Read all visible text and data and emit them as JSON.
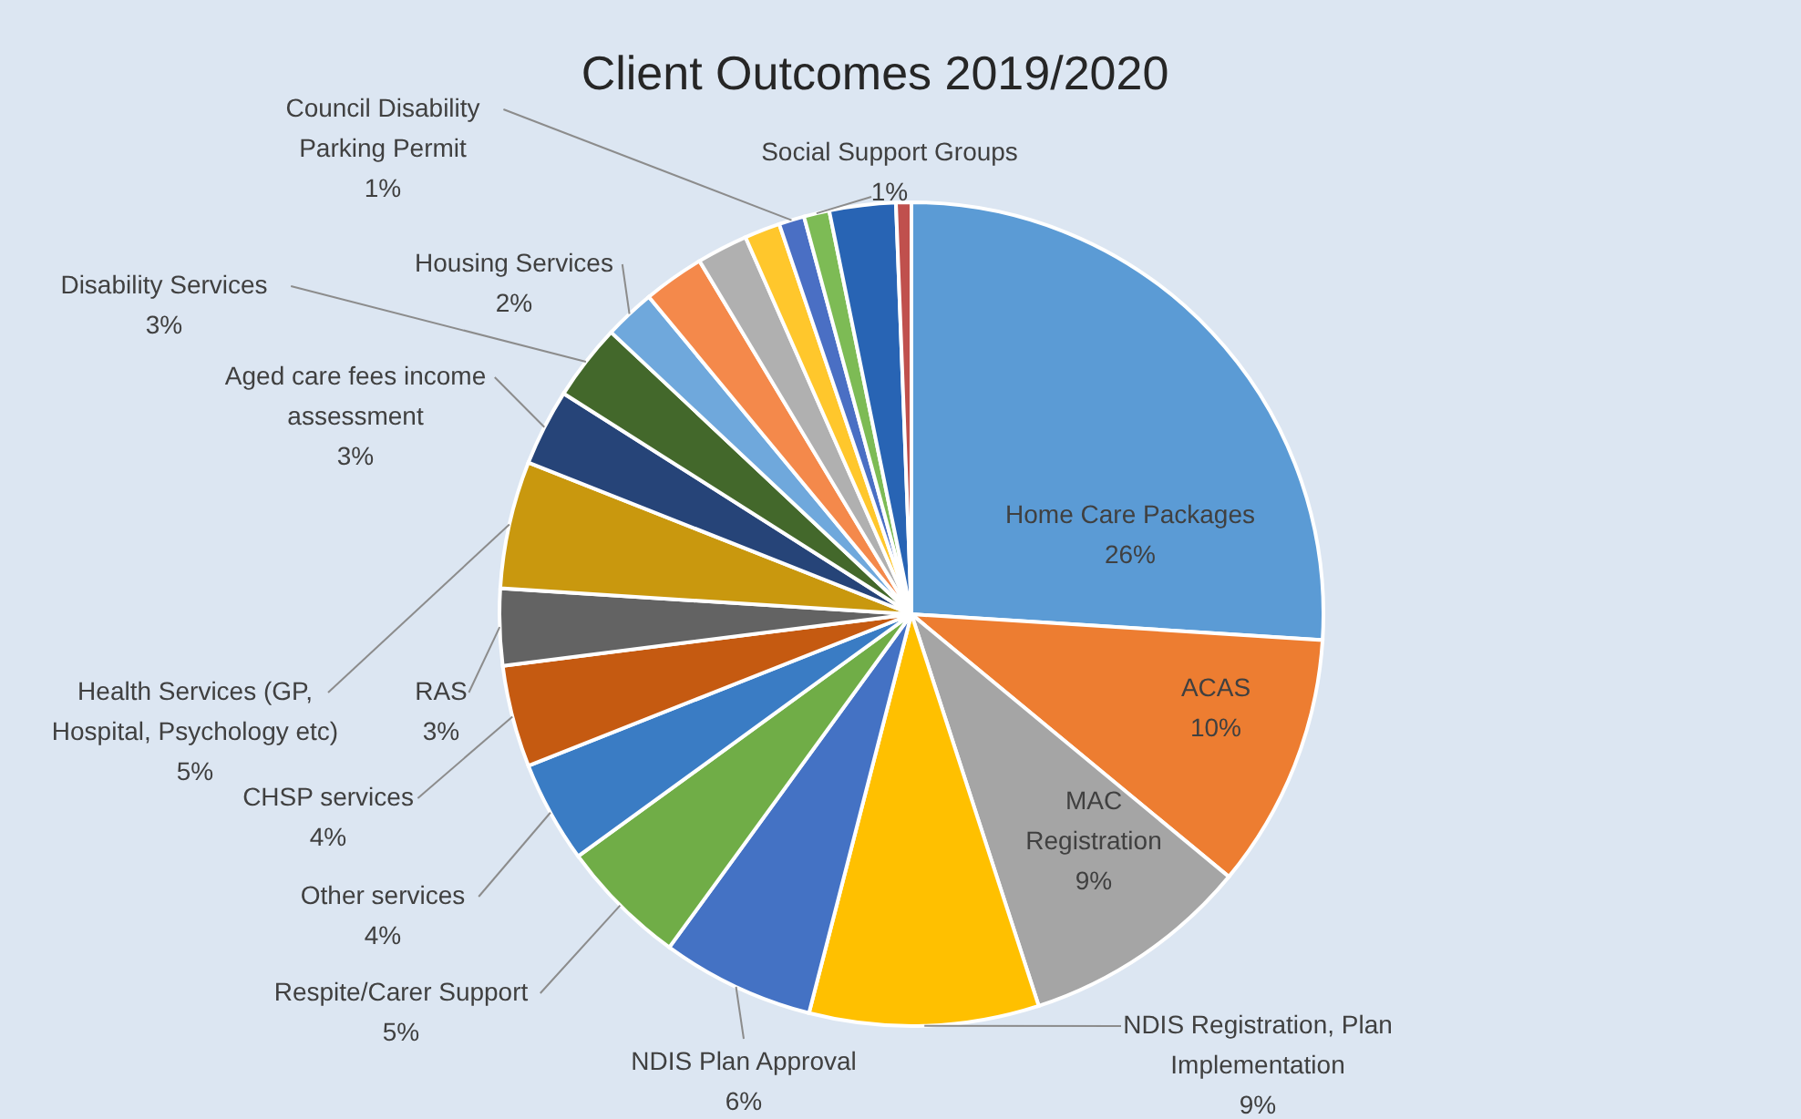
{
  "chart_data": {
    "type": "pie",
    "title": "Client Outcomes 2019/2020",
    "categories": [
      "Home Care Packages",
      "ACAS",
      "MAC Registration",
      "NDIS Registration, Plan Implementation",
      "NDIS Plan Approval",
      "Respite/Carer Support",
      "Other services",
      "CHSP services",
      "RAS",
      "Health Services (GP, Hospital, Psychology etc)",
      "Aged care fees income assessment",
      "Disability Services",
      "Housing Services",
      null,
      null,
      null,
      "Council Disability Parking Permit",
      "Social Support Groups",
      null,
      null
    ],
    "values": [
      26,
      10,
      9,
      9,
      6,
      5,
      4,
      4,
      3,
      5,
      3,
      3,
      2,
      2.4,
      2,
      1.4,
      1,
      1,
      2.6,
      0.6
    ],
    "value_labels": [
      "26%",
      "10%",
      "9%",
      "9%",
      "6%",
      "5%",
      "4%",
      "4%",
      "3%",
      "5%",
      "3%",
      "3%",
      "2%",
      null,
      null,
      null,
      "1%",
      "1%",
      null,
      null
    ],
    "colors": [
      "#5b9bd5",
      "#ed7d31",
      "#a5a5a5",
      "#ffc000",
      "#4472c4",
      "#70ad47",
      "#3a7cc4",
      "#c55a11",
      "#636363",
      "#c9980e",
      "#264478",
      "#43682b",
      "#6fa8dc",
      "#f4894b",
      "#b0b0b0",
      "#ffc72c",
      "#4a6fc4",
      "#7dbb55",
      "#2864b4",
      "#c0504d"
    ]
  }
}
